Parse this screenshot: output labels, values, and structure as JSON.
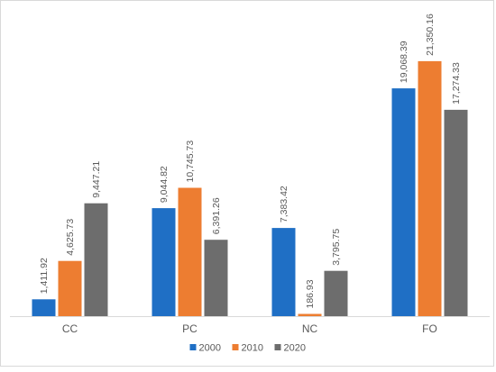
{
  "chart_data": {
    "type": "bar",
    "categories": [
      "CC",
      "PC",
      "NC",
      "FO"
    ],
    "series": [
      {
        "name": "2000",
        "color": "#1f6fc5",
        "values": [
          1411.92,
          9044.82,
          7383.42,
          19068.39
        ],
        "labels": [
          "1,411.92",
          "9,044.82",
          "7,383.42",
          "19,068.39"
        ]
      },
      {
        "name": "2010",
        "color": "#ed7d31",
        "values": [
          4625.73,
          10745.73,
          186.93,
          21350.16
        ],
        "labels": [
          "4,625.73",
          "10,745.73",
          "186.93",
          "21,350.16"
        ]
      },
      {
        "name": "2020",
        "color": "#6d6d6d",
        "values": [
          9447.21,
          6391.26,
          3795.75,
          17274.33
        ],
        "labels": [
          "9,447.21",
          "6,391.26",
          "3,795.75",
          "17,274.33"
        ]
      }
    ],
    "ylim": [
      0,
      25000
    ],
    "grid": false,
    "legend_position": "bottom",
    "title": "",
    "xlabel": "",
    "ylabel": ""
  }
}
